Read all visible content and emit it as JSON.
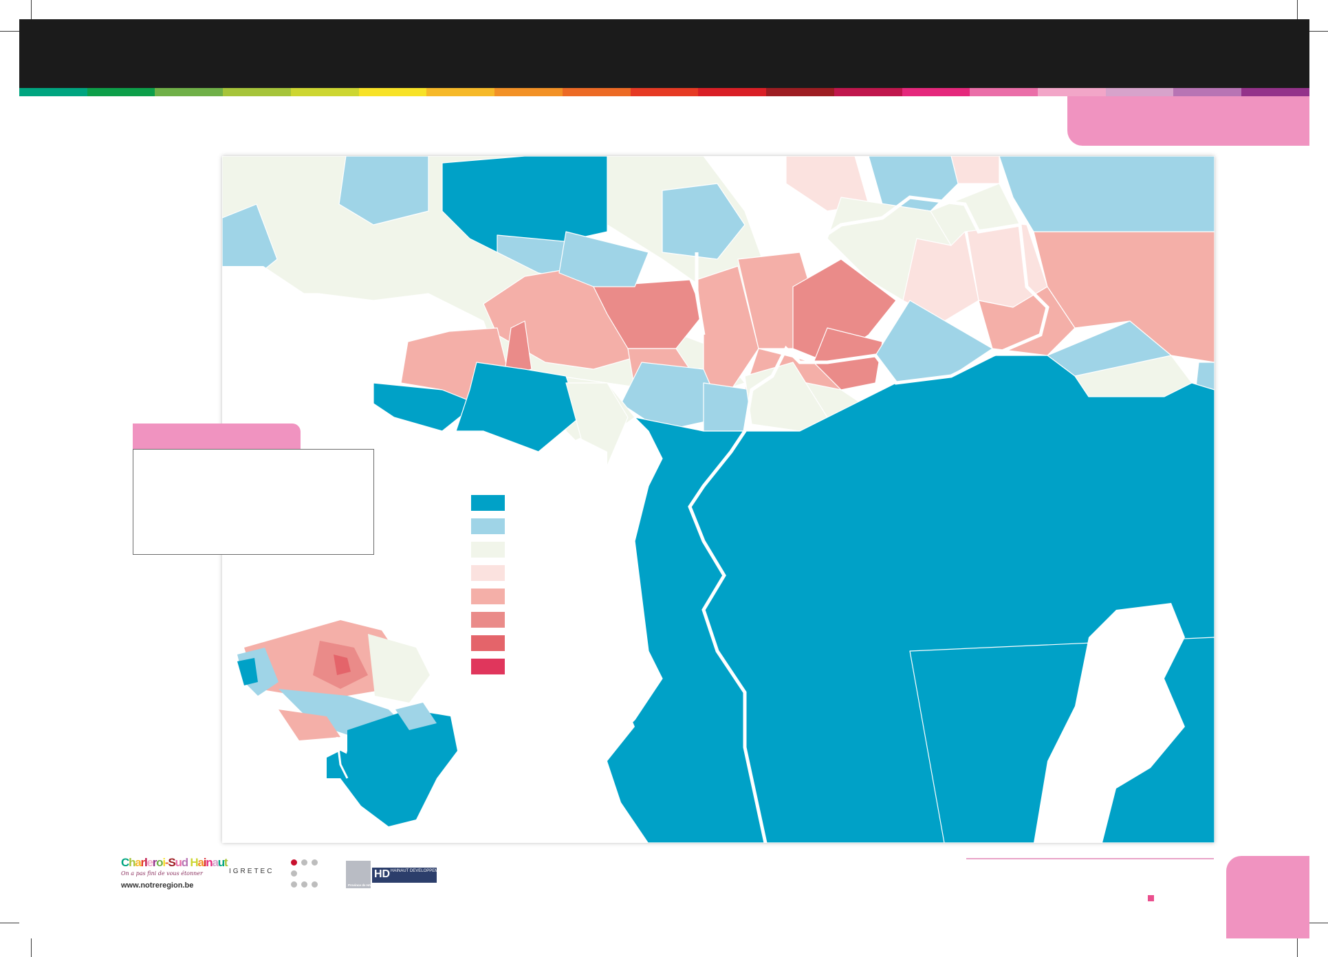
{
  "colors": {
    "header": "#1b1b1b",
    "accent_pink": "#f093c0",
    "strip": [
      "#00a580",
      "#0d9f4a",
      "#70b048",
      "#a6c43a",
      "#cdd632",
      "#f7e227",
      "#f6b929",
      "#f29126",
      "#ec6a25",
      "#e63a24",
      "#d91f26",
      "#9d1d22",
      "#c0174d",
      "#e5287c",
      "#ea6ea8",
      "#f2a6c8",
      "#d7a3cb",
      "#b874b4",
      "#94328a"
    ],
    "classes": [
      "#00a1c7",
      "#9fd4e7",
      "#f1f5ea",
      "#fbe2df",
      "#f4afa8",
      "#ea8b89",
      "#e4646a",
      "#e0365c"
    ]
  },
  "map": {
    "icons": {
      "map": "choropleth-map",
      "inset": "belgium-locator-map"
    },
    "legend": {
      "classes": 8
    }
  },
  "footer": {
    "logo_charleroi_title": "Charleroi-Sud Hainaut",
    "logo_charleroi_tagline": "On a pas fini de vous étonner",
    "logo_charleroi_url": "www.notreregion.be",
    "logo_igretec": "IGRETEC",
    "logo_province": "Province de HAINAUT",
    "logo_hd_big": "HD",
    "logo_hd_small": "HAINAUT DEVELOPPEMENT"
  }
}
